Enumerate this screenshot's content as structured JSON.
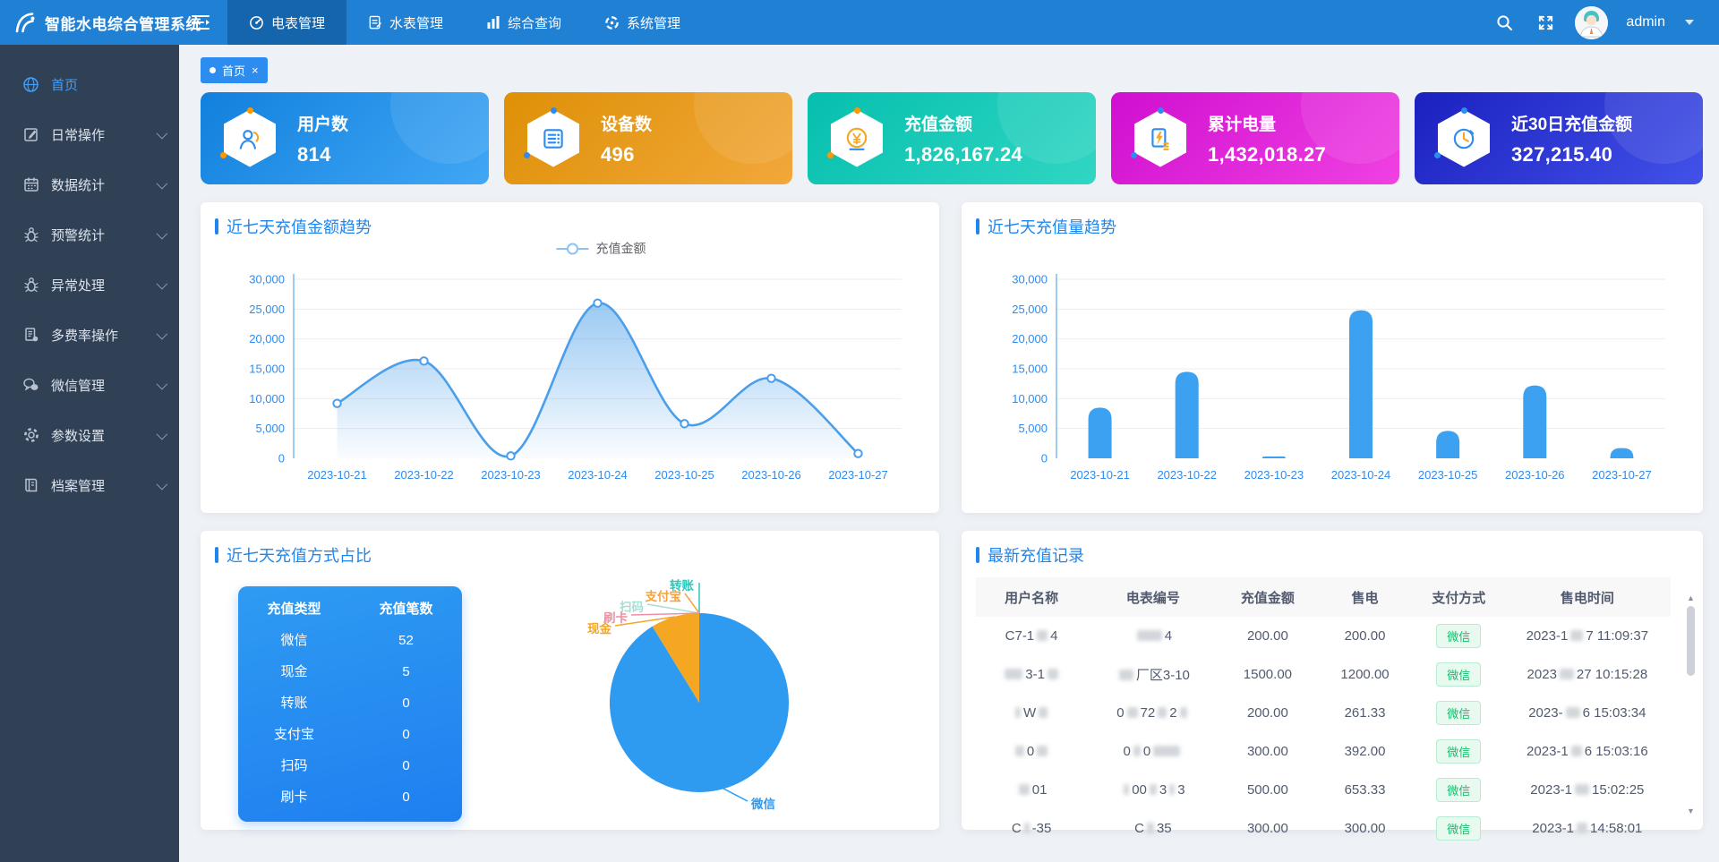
{
  "app": {
    "title": "智能水电综合管理系统"
  },
  "navbar": {
    "tabs": [
      {
        "label": "电表管理",
        "icon": "electric-meter-icon",
        "active": true
      },
      {
        "label": "水表管理",
        "icon": "water-meter-icon",
        "active": false
      },
      {
        "label": "综合查询",
        "icon": "query-chart-icon",
        "active": false
      },
      {
        "label": "系统管理",
        "icon": "system-gear-icon",
        "active": false
      }
    ],
    "username": "admin"
  },
  "sidebar": {
    "items": [
      {
        "label": "首页",
        "icon": "home-globe-icon",
        "active": true,
        "expandable": false
      },
      {
        "label": "日常操作",
        "icon": "edit-icon",
        "active": false,
        "expandable": true
      },
      {
        "label": "数据统计",
        "icon": "calendar-icon",
        "active": false,
        "expandable": true
      },
      {
        "label": "预警统计",
        "icon": "bug-icon",
        "active": false,
        "expandable": true
      },
      {
        "label": "异常处理",
        "icon": "bug-icon",
        "active": false,
        "expandable": true
      },
      {
        "label": "多费率操作",
        "icon": "documents-icon",
        "active": false,
        "expandable": true
      },
      {
        "label": "微信管理",
        "icon": "wechat-icon",
        "active": false,
        "expandable": true
      },
      {
        "label": "参数设置",
        "icon": "gear-icon",
        "active": false,
        "expandable": true
      },
      {
        "label": "档案管理",
        "icon": "archive-icon",
        "active": false,
        "expandable": true
      }
    ]
  },
  "tagbar": {
    "active_tag": "首页",
    "close": "×"
  },
  "stat_cards": [
    {
      "title": "用户数",
      "value": "814",
      "color": "#1180dd"
    },
    {
      "title": "设备数",
      "value": "496",
      "color": "#de9006"
    },
    {
      "title": "充值金额",
      "value": "1,826,167.24",
      "color": "#06bfae"
    },
    {
      "title": "累计电量",
      "value": "1,432,018.27",
      "color": "#cf0fd0"
    },
    {
      "title": "近30日充值金额",
      "value": "327,215.40",
      "color": "#1b20bf"
    }
  ],
  "chart_data": [
    {
      "id": "recharge_amount_trend",
      "type": "line",
      "title": "近七天充值金额趋势",
      "legend": [
        "充值金额"
      ],
      "categories": [
        "2023-10-21",
        "2023-10-22",
        "2023-10-23",
        "2023-10-24",
        "2023-10-25",
        "2023-10-26",
        "2023-10-27"
      ],
      "values": [
        9200,
        16300,
        400,
        26000,
        5800,
        13400,
        800
      ],
      "ylim": [
        0,
        30000
      ],
      "ytick": 5000,
      "color": "#4a9eea",
      "axis_label_color": "#2d8cf0",
      "grid": true,
      "legend_position": "top-center"
    },
    {
      "id": "recharge_volume_trend",
      "type": "bar",
      "title": "近七天充值量趋势",
      "categories": [
        "2023-10-21",
        "2023-10-22",
        "2023-10-23",
        "2023-10-24",
        "2023-10-25",
        "2023-10-26",
        "2023-10-27"
      ],
      "values": [
        8500,
        14500,
        300,
        24800,
        4600,
        12200,
        1700
      ],
      "ylim": [
        0,
        30000
      ],
      "ytick": 5000,
      "color": "#3ca1f0",
      "axis_label_color": "#2d8cf0",
      "grid": true
    },
    {
      "id": "recharge_method_pie",
      "type": "pie",
      "title": "近七天充值方式占比",
      "slices": [
        {
          "name": "微信",
          "value": 52,
          "color": "#2e9bf0"
        },
        {
          "name": "现金",
          "value": 5,
          "color": "#f5a623"
        },
        {
          "name": "转账",
          "value": 0,
          "color": "#2ec7b9"
        },
        {
          "name": "支付宝",
          "value": 0,
          "color": "#f8a23b"
        },
        {
          "name": "扫码",
          "value": 0,
          "color": "#a8ded3"
        },
        {
          "name": "刷卡",
          "value": 0,
          "color": "#f08fa4"
        }
      ]
    },
    {
      "id": "recharge_method_table",
      "type": "table",
      "headers": [
        "充值类型",
        "充值笔数"
      ],
      "rows": [
        [
          "微信",
          "52"
        ],
        [
          "现金",
          "5"
        ],
        [
          "转账",
          "0"
        ],
        [
          "支付宝",
          "0"
        ],
        [
          "扫码",
          "0"
        ],
        [
          "刷卡",
          "0"
        ]
      ]
    }
  ],
  "records": {
    "title": "最新充值记录",
    "headers": [
      "用户名称",
      "电表编号",
      "充值金额",
      "售电",
      "支付方式",
      "售电时间"
    ],
    "rows": [
      {
        "user": [
          {
            "t": "C7-1"
          },
          {
            "b": 12
          },
          {
            "t": "4"
          }
        ],
        "meter": [
          {
            "b": 28
          },
          {
            "t": "4"
          }
        ],
        "amount": "200.00",
        "sale": "200.00",
        "pay": "微信",
        "time": [
          {
            "t": "2023-1"
          },
          {
            "b": 14
          },
          {
            "t": "7 11:09:37"
          }
        ]
      },
      {
        "user": [
          {
            "b": 20
          },
          {
            "t": "3-1"
          },
          {
            "b": 12
          }
        ],
        "meter": [
          {
            "b": 16
          },
          {
            "t": "厂区3-10"
          }
        ],
        "amount": "1500.00",
        "sale": "1200.00",
        "pay": "微信",
        "time": [
          {
            "t": "2023"
          },
          {
            "b": 16
          },
          {
            "t": "27 10:15:28"
          }
        ]
      },
      {
        "user": [
          {
            "b": 6
          },
          {
            "t": "W"
          },
          {
            "b": 10
          }
        ],
        "meter": [
          {
            "t": "0"
          },
          {
            "b": 12
          },
          {
            "t": "72"
          },
          {
            "b": 10
          },
          {
            "t": "2"
          },
          {
            "b": 8
          }
        ],
        "amount": "200.00",
        "sale": "261.33",
        "pay": "微信",
        "time": [
          {
            "t": "2023-"
          },
          {
            "b": 16
          },
          {
            "t": "6 15:03:34"
          }
        ]
      },
      {
        "user": [
          {
            "b": 10
          },
          {
            "t": "0"
          },
          {
            "b": 12
          }
        ],
        "meter": [
          {
            "t": "0"
          },
          {
            "b": 8
          },
          {
            "t": "0"
          },
          {
            "b": 30
          }
        ],
        "amount": "300.00",
        "sale": "392.00",
        "pay": "微信",
        "time": [
          {
            "t": "2023-1"
          },
          {
            "b": 12
          },
          {
            "t": "6 15:03:16"
          }
        ]
      },
      {
        "user": [
          {
            "b": 12
          },
          {
            "t": "01"
          }
        ],
        "meter": [
          {
            "b": 6
          },
          {
            "t": "00"
          },
          {
            "b": 8
          },
          {
            "t": "3"
          },
          {
            "b": 6
          },
          {
            "t": "3"
          }
        ],
        "amount": "500.00",
        "sale": "653.33",
        "pay": "微信",
        "time": [
          {
            "t": "2023-1"
          },
          {
            "b": 16
          },
          {
            "t": "15:02:25"
          }
        ]
      },
      {
        "user": [
          {
            "t": "C"
          },
          {
            "b": 6
          },
          {
            "t": "-35"
          }
        ],
        "meter": [
          {
            "t": "C"
          },
          {
            "b": 8
          },
          {
            "t": "35"
          }
        ],
        "amount": "300.00",
        "sale": "300.00",
        "pay": "微信",
        "time": [
          {
            "t": "2023-1"
          },
          {
            "b": 12
          },
          {
            "t": "14:58:01"
          }
        ]
      }
    ]
  }
}
